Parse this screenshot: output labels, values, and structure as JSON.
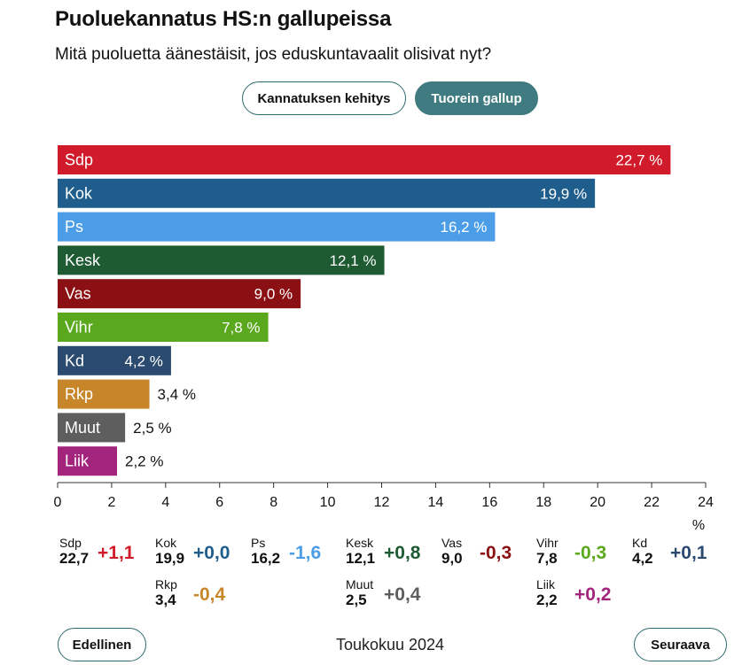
{
  "header": {
    "title": "Puoluekannatus HS:n gallupeissa",
    "subtitle": "Mitä puoluetta äänestäisit, jos eduskuntavaalit olisivat nyt?"
  },
  "toggles": {
    "history_label": "Kannatuksen kehitys",
    "latest_label": "Tuorein gallup"
  },
  "chart_data": {
    "type": "bar",
    "orientation": "horizontal",
    "categories": [
      "Sdp",
      "Kok",
      "Ps",
      "Kesk",
      "Vas",
      "Vihr",
      "Kd",
      "Rkp",
      "Muut",
      "Liik"
    ],
    "values": [
      22.7,
      19.9,
      16.2,
      12.1,
      9.0,
      7.8,
      4.2,
      3.4,
      2.5,
      2.2
    ],
    "value_labels": [
      "22,7 %",
      "19,9 %",
      "16,2 %",
      "12,1 %",
      "9,0 %",
      "7,8 %",
      "4,2 %",
      "3,4 %",
      "2,5 %",
      "2,2 %"
    ],
    "colors": [
      "#d11a2a",
      "#1f5e8c",
      "#4c9de8",
      "#1e5a32",
      "#8b1014",
      "#5aa81e",
      "#2b4a70",
      "#c8862a",
      "#5e5e5e",
      "#a3247c"
    ],
    "xlim": [
      0,
      24
    ],
    "xticks": [
      "0",
      "2",
      "4",
      "6",
      "8",
      "10",
      "12",
      "14",
      "16",
      "18",
      "20",
      "22",
      "24"
    ],
    "xlabel": "%"
  },
  "changes": [
    {
      "party": "Sdp",
      "value": "22,7",
      "change": "+1,1",
      "color": "#d11a2a"
    },
    {
      "party": "Kok",
      "value": "19,9",
      "change": "+0,0",
      "color": "#1f5e8c"
    },
    {
      "party": "Ps",
      "value": "16,2",
      "change": "-1,6",
      "color": "#4c9de8"
    },
    {
      "party": "Kesk",
      "value": "12,1",
      "change": "+0,8",
      "color": "#1e5a32"
    },
    {
      "party": "Vas",
      "value": "9,0",
      "change": "-0,3",
      "color": "#8b1014"
    },
    {
      "party": "Vihr",
      "value": "7,8",
      "change": "-0,3",
      "color": "#5aa81e"
    },
    {
      "party": "Kd",
      "value": "4,2",
      "change": "+0,1",
      "color": "#2b4a70"
    },
    {
      "party": "Rkp",
      "value": "3,4",
      "change": "-0,4",
      "color": "#c8862a"
    },
    {
      "party": "Muut",
      "value": "2,5",
      "change": "+0,4",
      "color": "#5e5e5e"
    },
    {
      "party": "Liik",
      "value": "2,2",
      "change": "+0,2",
      "color": "#a3247c"
    }
  ],
  "navigation": {
    "prev_label": "Edellinen",
    "period": "Toukokuu 2024",
    "next_label": "Seuraava"
  }
}
